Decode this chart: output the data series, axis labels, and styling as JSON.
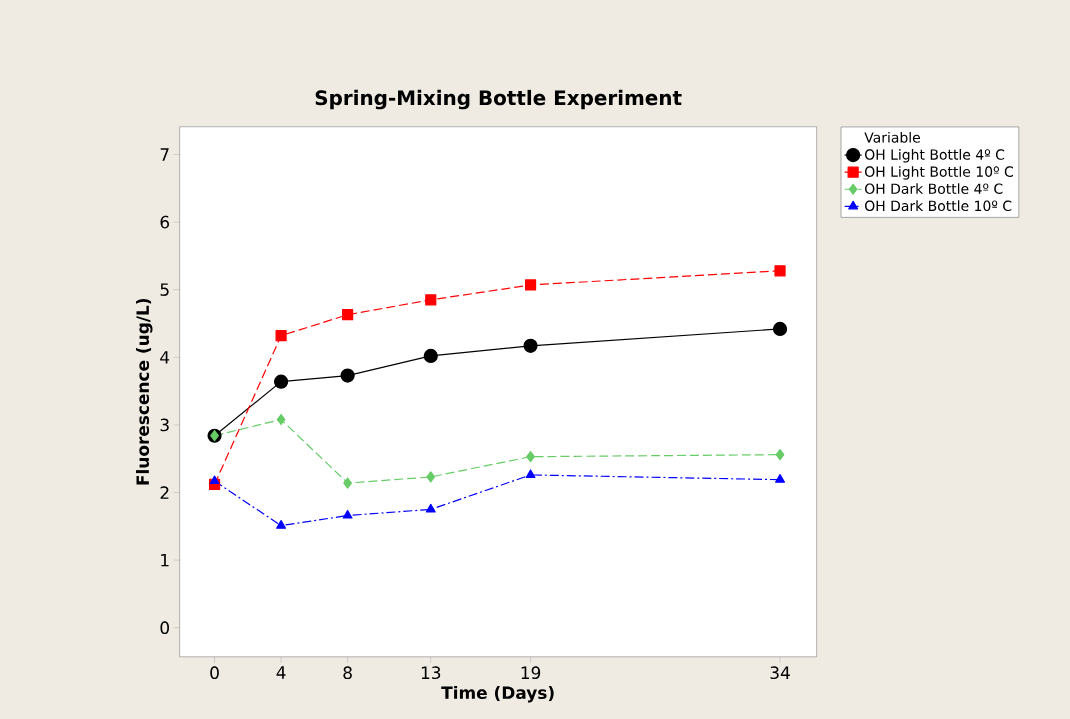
{
  "chart_data": {
    "type": "line",
    "title": "Spring-Mixing Bottle Experiment",
    "xlabel": "Time (Days)",
    "ylabel": "Fluorescence (ug/L)",
    "legend_title": "Variable",
    "legend": "top right",
    "x": [
      0,
      4,
      8,
      13,
      19,
      34
    ],
    "xlim": [
      -2.1,
      36.2
    ],
    "ylim": [
      -0.43,
      7.41
    ],
    "xticks": [
      0,
      4,
      8,
      13,
      19,
      34
    ],
    "yticks": [
      0,
      1,
      2,
      3,
      4,
      5,
      6,
      7
    ],
    "grid": false,
    "series": [
      {
        "name": "OH Light Bottle 4º C",
        "color": "#000000",
        "marker": "circle",
        "line_style": "solid",
        "values": [
          2.84,
          3.64,
          3.73,
          4.02,
          4.17,
          4.42
        ]
      },
      {
        "name": "OH Light Bottle 10º C",
        "color": "#ff0000",
        "marker": "square",
        "line_style": "dashed",
        "values": [
          2.12,
          4.32,
          4.63,
          4.85,
          5.07,
          5.28
        ]
      },
      {
        "name": "OH Dark Bottle 4º C",
        "color": "#66cc66",
        "marker": "diamond",
        "line_style": "dashed",
        "values": [
          2.84,
          3.08,
          2.14,
          2.23,
          2.53,
          2.56
        ]
      },
      {
        "name": "OH Dark Bottle 10º C",
        "color": "#0000ff",
        "marker": "triangle",
        "line_style": "dashdot",
        "values": [
          2.17,
          1.51,
          1.66,
          1.75,
          2.26,
          2.19
        ]
      }
    ]
  }
}
